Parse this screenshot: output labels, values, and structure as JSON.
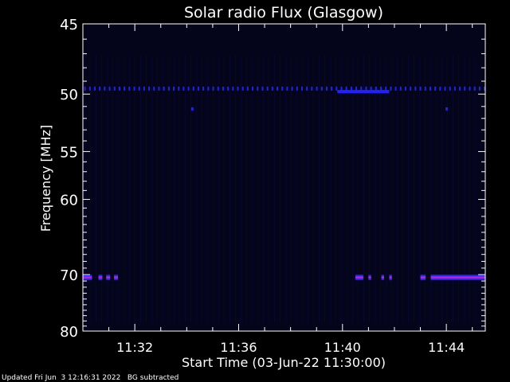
{
  "footer": {
    "updated": "Updated Fri Jun  3 12:16:31 2022",
    "note": "BG subtracted"
  },
  "colors": {
    "background": "#000000",
    "plot_background": "#04041a",
    "axis": "#ffffff",
    "band_blue": "#2020ff",
    "band_magenta": "#c020c0",
    "faint_streak": "#0a0a3a"
  },
  "chart_data": {
    "type": "heatmap",
    "title": "Solar radio Flux (Glasgow)",
    "xlabel": "Start Time (03-Jun-22 11:30:00)",
    "ylabel": "Frequency [MHz]",
    "x_unit": "minutes after 11:30:00",
    "xlim": [
      0,
      15.5
    ],
    "ylim": [
      80,
      45
    ],
    "y_scale": "reciprocal",
    "x_ticks": [
      {
        "value": 2,
        "label": "11:32"
      },
      {
        "value": 6,
        "label": "11:36"
      },
      {
        "value": 10,
        "label": "11:40"
      },
      {
        "value": 14,
        "label": "11:44"
      }
    ],
    "y_ticks": [
      {
        "value": 45,
        "label": "45"
      },
      {
        "value": 50,
        "label": "50"
      },
      {
        "value": 55,
        "label": "55"
      },
      {
        "value": 60,
        "label": "60"
      },
      {
        "value": 70,
        "label": "70"
      },
      {
        "value": 80,
        "label": "80"
      }
    ],
    "emission_bands": [
      {
        "frequency": 49.6,
        "style": "dotted",
        "color": "blue",
        "x_start": 0,
        "x_end": 15.5
      },
      {
        "frequency": 49.8,
        "style": "solid",
        "color": "blue",
        "x_start": 9.8,
        "x_end": 11.8
      },
      {
        "frequency": 51.2,
        "style": "point",
        "color": "blue",
        "x_start": 4.2,
        "x_end": 4.3
      },
      {
        "frequency": 51.2,
        "style": "point",
        "color": "blue",
        "x_start": 14.0,
        "x_end": 14.1
      },
      {
        "frequency": 70.5,
        "style": "solid",
        "color": "magenta",
        "x_start": 0.0,
        "x_end": 0.35
      },
      {
        "frequency": 70.5,
        "style": "solid",
        "color": "magenta",
        "x_start": 0.6,
        "x_end": 0.75
      },
      {
        "frequency": 70.5,
        "style": "solid",
        "color": "magenta",
        "x_start": 0.9,
        "x_end": 1.05
      },
      {
        "frequency": 70.5,
        "style": "solid",
        "color": "magenta",
        "x_start": 1.2,
        "x_end": 1.35
      },
      {
        "frequency": 70.5,
        "style": "solid",
        "color": "magenta",
        "x_start": 10.5,
        "x_end": 10.8
      },
      {
        "frequency": 70.5,
        "style": "solid",
        "color": "magenta",
        "x_start": 11.0,
        "x_end": 11.1
      },
      {
        "frequency": 70.5,
        "style": "solid",
        "color": "magenta",
        "x_start": 11.5,
        "x_end": 11.6
      },
      {
        "frequency": 70.5,
        "style": "solid",
        "color": "magenta",
        "x_start": 11.8,
        "x_end": 11.9
      },
      {
        "frequency": 70.5,
        "style": "solid",
        "color": "magenta",
        "x_start": 13.0,
        "x_end": 13.2
      },
      {
        "frequency": 70.5,
        "style": "solid",
        "color": "magenta",
        "x_start": 13.4,
        "x_end": 15.5
      }
    ]
  }
}
